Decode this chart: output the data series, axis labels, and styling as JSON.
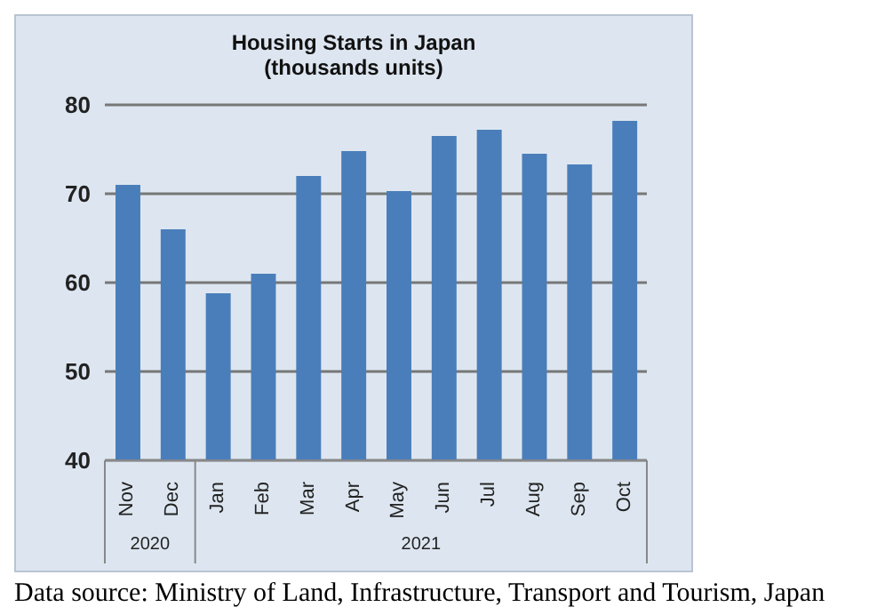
{
  "chart_data": {
    "type": "bar",
    "title": "Housing Starts in Japan\n(thousands units)",
    "categories": [
      "Nov",
      "Dec",
      "Jan",
      "Feb",
      "Mar",
      "Apr",
      "May",
      "Jun",
      "Jul",
      "Aug",
      "Sep",
      "Oct"
    ],
    "values": [
      71,
      66,
      58.8,
      61,
      72,
      74.8,
      70.3,
      76.5,
      77.2,
      74.5,
      73.3,
      78.2
    ],
    "color": "#4a7ebb",
    "ylim": [
      40,
      80
    ],
    "yticks": [
      40,
      50,
      60,
      70,
      80
    ],
    "grid": "y",
    "annotations": [
      "2020",
      "2021",
      "Data source: Ministry of Land, Infrastructure, Transport and Tourism, Japan"
    ]
  }
}
